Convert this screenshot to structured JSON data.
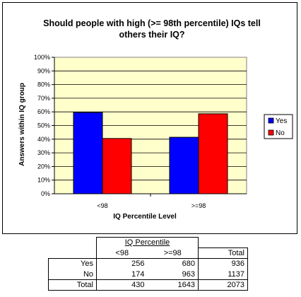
{
  "chart_data": {
    "type": "bar",
    "title_lines": [
      "Should people with high (>= 98th percentile) IQs tell",
      "others their IQ?"
    ],
    "categories": [
      "<98",
      ">=98"
    ],
    "series": [
      {
        "name": "Yes",
        "color": "#0000ff",
        "values": [
          59.5,
          41.4
        ]
      },
      {
        "name": "No",
        "color": "#ff0000",
        "values": [
          40.5,
          58.6
        ]
      }
    ],
    "xlabel": "IQ Percentile Level",
    "ylabel": "Answers within IQ group",
    "ylim": [
      0,
      100
    ],
    "yticks": [
      "0%",
      "10%",
      "20%",
      "30%",
      "40%",
      "50%",
      "60%",
      "70%",
      "80%",
      "90%",
      "100%"
    ],
    "plot_background": "#ffffcc",
    "grid": true,
    "legend_position": "right"
  },
  "table": {
    "group_header": "IQ Percentile",
    "col_headers": [
      "<98",
      ">=98",
      "Total"
    ],
    "rows": [
      {
        "label": "Yes",
        "values": [
          "256",
          "680",
          "936"
        ]
      },
      {
        "label": "No",
        "values": [
          "174",
          "963",
          "1137"
        ]
      },
      {
        "label": "Total",
        "values": [
          "430",
          "1643",
          "2073"
        ]
      }
    ]
  }
}
